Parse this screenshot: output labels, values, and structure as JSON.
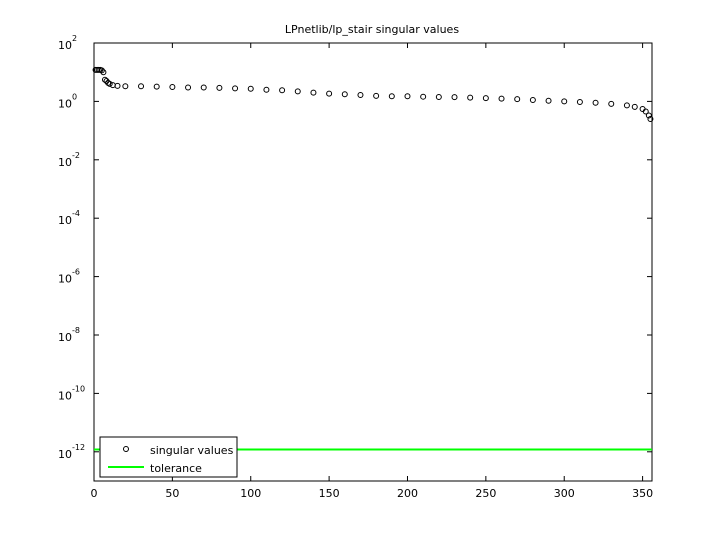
{
  "chart_data": {
    "type": "scatter",
    "title": "LPnetlib/lp_stair singular values",
    "log_y": true,
    "xlim": [
      0,
      356
    ],
    "xticks": [
      0,
      50,
      100,
      150,
      200,
      250,
      300,
      350
    ],
    "ylim": [
      1e-13,
      100
    ],
    "yticks": [
      {
        "value": 100,
        "label": "10^2"
      },
      {
        "value": 1,
        "label": "10^0"
      },
      {
        "value": 0.01,
        "label": "10^-2"
      },
      {
        "value": 0.0001,
        "label": "10^-4"
      },
      {
        "value": 1e-06,
        "label": "10^-6"
      },
      {
        "value": 1e-08,
        "label": "10^-8"
      },
      {
        "value": 1e-10,
        "label": "10^-10"
      },
      {
        "value": 1e-12,
        "label": "10^-12"
      }
    ],
    "legend": "lower left",
    "series": [
      {
        "name": "singular values",
        "color": "#000000",
        "x": [
          1,
          2,
          3,
          4,
          5,
          6,
          7,
          8,
          9,
          10,
          12,
          15,
          20,
          30,
          40,
          50,
          60,
          70,
          80,
          90,
          100,
          110,
          120,
          130,
          140,
          150,
          160,
          170,
          180,
          190,
          200,
          210,
          220,
          230,
          240,
          250,
          260,
          270,
          280,
          290,
          300,
          310,
          320,
          330,
          340,
          345,
          350,
          352,
          354,
          355
        ],
        "values": [
          12,
          12,
          12,
          12,
          11.5,
          10,
          5.5,
          5,
          4.3,
          4,
          3.6,
          3.4,
          3.3,
          3.3,
          3.2,
          3.1,
          3.0,
          3.0,
          2.9,
          2.8,
          2.7,
          2.5,
          2.4,
          2.2,
          2.0,
          1.85,
          1.75,
          1.65,
          1.55,
          1.5,
          1.5,
          1.45,
          1.42,
          1.4,
          1.35,
          1.3,
          1.25,
          1.2,
          1.12,
          1.05,
          1.0,
          0.95,
          0.9,
          0.82,
          0.73,
          0.65,
          0.55,
          0.45,
          0.33,
          0.25
        ]
      }
    ],
    "tolerance": {
      "name": "tolerance",
      "color": "#00ff00",
      "value": 1.2e-12
    }
  }
}
